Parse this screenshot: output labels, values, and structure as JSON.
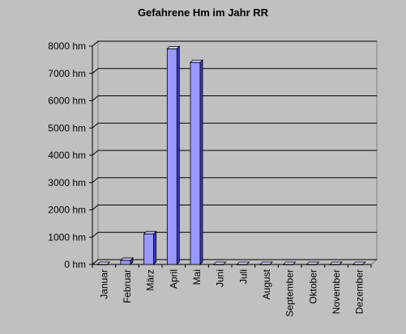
{
  "chart_data": {
    "type": "bar",
    "title": "Gefahrene Hm im Jahr RR",
    "xlabel": "",
    "ylabel": "",
    "categories": [
      "Januar",
      "Februar",
      "März",
      "April",
      "Mai",
      "Juni",
      "Juli",
      "August",
      "September",
      "Oktober",
      "November",
      "Dezember"
    ],
    "values": [
      0,
      150,
      1120,
      7900,
      7400,
      0,
      0,
      0,
      0,
      0,
      0,
      0
    ],
    "ylim": [
      0,
      8000
    ],
    "yticks": [
      0,
      1000,
      2000,
      3000,
      4000,
      5000,
      6000,
      7000,
      8000
    ],
    "tick_unit": "hm",
    "grid": true,
    "legend": "none",
    "colors": {
      "background": "#c0c0c0",
      "bar_front": "#9999ff",
      "bar_side": "#3b3bcc",
      "bar_top": "#c8c8ff",
      "grid": "#000000"
    }
  }
}
